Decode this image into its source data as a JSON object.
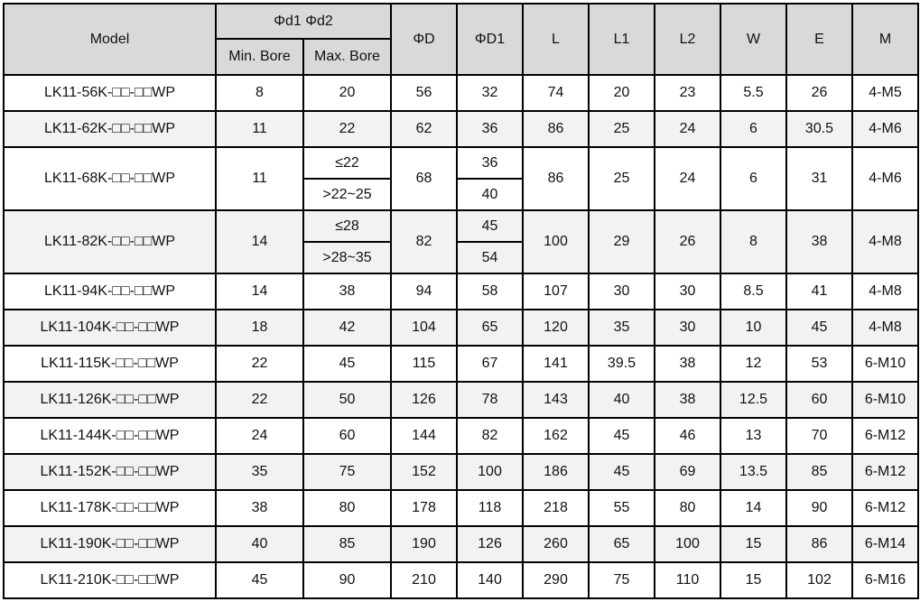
{
  "header": {
    "model": "Model",
    "bore_group": "Φd1 Φd2",
    "min_bore": "Min. Bore",
    "max_bore": "Max. Bore",
    "cols": [
      "ΦD",
      "ΦD1",
      "L",
      "L1",
      "L2",
      "W",
      "E",
      "M"
    ]
  },
  "rows": [
    {
      "model": "LK11-56K-□□-□□WP",
      "min": "8",
      "max": "20",
      "D": "56",
      "D1": "32",
      "L": "74",
      "L1": "20",
      "L2": "23",
      "W": "5.5",
      "E": "26",
      "M": "4-M5"
    },
    {
      "model": "LK11-62K-□□-□□WP",
      "min": "11",
      "max": "22",
      "D": "62",
      "D1": "36",
      "L": "86",
      "L1": "25",
      "L2": "24",
      "W": "6",
      "E": "30.5",
      "M": "4-M6"
    },
    {
      "model": "LK11-68K-□□-□□WP",
      "min": "11",
      "max": "≤22",
      "max2": ">22~25",
      "D": "68",
      "D1": "36",
      "D1b": "40",
      "L": "86",
      "L1": "25",
      "L2": "24",
      "W": "6",
      "E": "31",
      "M": "4-M6"
    },
    {
      "model": "LK11-82K-□□-□□WP",
      "min": "14",
      "max": "≤28",
      "max2": ">28~35",
      "D": "82",
      "D1": "45",
      "D1b": "54",
      "L": "100",
      "L1": "29",
      "L2": "26",
      "W": "8",
      "E": "38",
      "M": "4-M8"
    },
    {
      "model": "LK11-94K-□□-□□WP",
      "min": "14",
      "max": "38",
      "D": "94",
      "D1": "58",
      "L": "107",
      "L1": "30",
      "L2": "30",
      "W": "8.5",
      "E": "41",
      "M": "4-M8"
    },
    {
      "model": "LK11-104K-□□-□□WP",
      "min": "18",
      "max": "42",
      "D": "104",
      "D1": "65",
      "L": "120",
      "L1": "35",
      "L2": "30",
      "W": "10",
      "E": "45",
      "M": "4-M8"
    },
    {
      "model": "LK11-115K-□□-□□WP",
      "min": "22",
      "max": "45",
      "D": "115",
      "D1": "67",
      "L": "141",
      "L1": "39.5",
      "L2": "38",
      "W": "12",
      "E": "53",
      "M": "6-M10"
    },
    {
      "model": "LK11-126K-□□-□□WP",
      "min": "22",
      "max": "50",
      "D": "126",
      "D1": "78",
      "L": "143",
      "L1": "40",
      "L2": "38",
      "W": "12.5",
      "E": "60",
      "M": "6-M10"
    },
    {
      "model": "LK11-144K-□□-□□WP",
      "min": "24",
      "max": "60",
      "D": "144",
      "D1": "82",
      "L": "162",
      "L1": "45",
      "L2": "46",
      "W": "13",
      "E": "70",
      "M": "6-M12"
    },
    {
      "model": "LK11-152K-□□-□□WP",
      "min": "35",
      "max": "75",
      "D": "152",
      "D1": "100",
      "L": "186",
      "L1": "45",
      "L2": "69",
      "W": "13.5",
      "E": "85",
      "M": "6-M12"
    },
    {
      "model": "LK11-178K-□□-□□WP",
      "min": "38",
      "max": "80",
      "D": "178",
      "D1": "118",
      "L": "218",
      "L1": "55",
      "L2": "80",
      "W": "14",
      "E": "90",
      "M": "6-M12"
    },
    {
      "model": "LK11-190K-□□-□□WP",
      "min": "40",
      "max": "85",
      "D": "190",
      "D1": "126",
      "L": "260",
      "L1": "65",
      "L2": "100",
      "W": "15",
      "E": "86",
      "M": "6-M14"
    },
    {
      "model": "LK11-210K-□□-□□WP",
      "min": "45",
      "max": "90",
      "D": "210",
      "D1": "140",
      "L": "290",
      "L1": "75",
      "L2": "110",
      "W": "15",
      "E": "102",
      "M": "6-M16"
    }
  ]
}
